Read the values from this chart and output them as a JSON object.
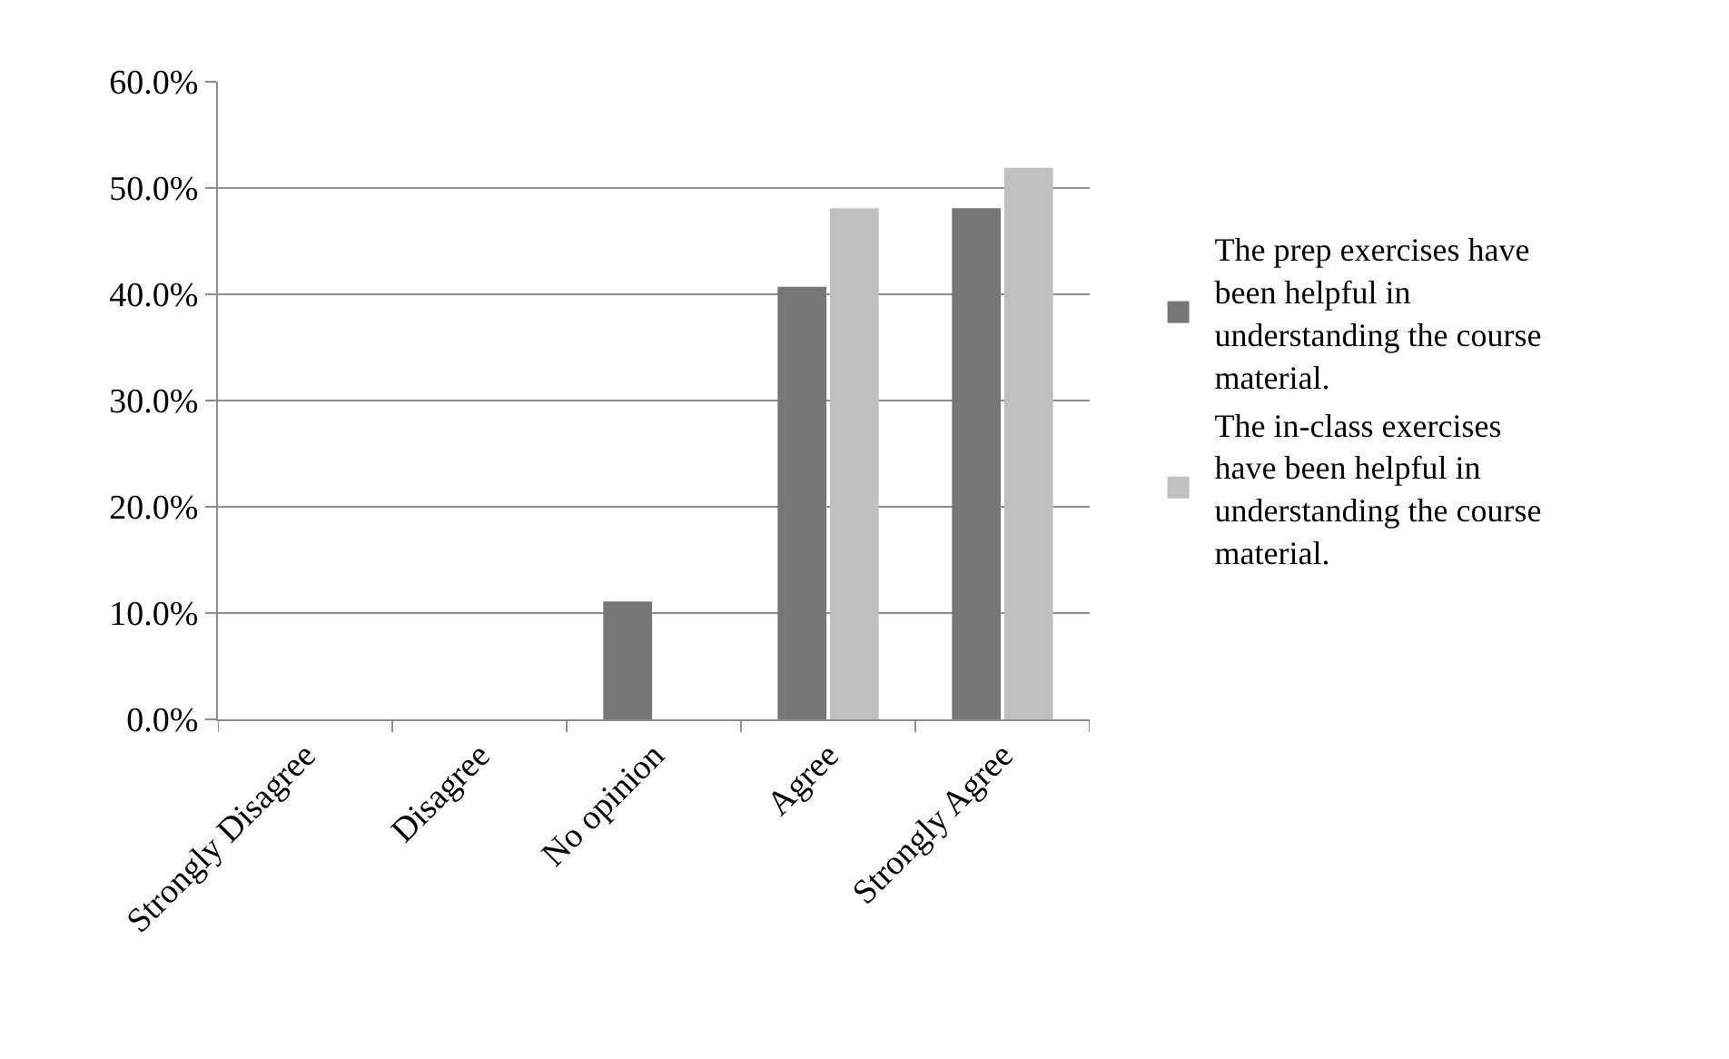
{
  "chart_data": {
    "type": "bar",
    "categories": [
      "Strongly Disagree",
      "Disagree",
      "No opinion",
      "Agree",
      "Strongly Agree"
    ],
    "series": [
      {
        "name": "The prep exercises have been helpful in understanding the course material.",
        "color": "#767676",
        "values": [
          0,
          0,
          11.1,
          40.7,
          48.1
        ]
      },
      {
        "name": "The in-class exercises have been helpful in understanding the course material.",
        "color": "#c0c0c0",
        "values": [
          0,
          0,
          0,
          48.1,
          51.9
        ]
      }
    ],
    "ylim": [
      0,
      60
    ],
    "yticks": [
      {
        "value": 0,
        "label": "0.0%"
      },
      {
        "value": 10,
        "label": "10.0%"
      },
      {
        "value": 20,
        "label": "20.0%"
      },
      {
        "value": 30,
        "label": "30.0%"
      },
      {
        "value": 40,
        "label": "40.0%"
      },
      {
        "value": 50,
        "label": "50.0%"
      },
      {
        "value": 60,
        "label": "60.0%"
      }
    ],
    "grid": "y",
    "legend": "right"
  }
}
